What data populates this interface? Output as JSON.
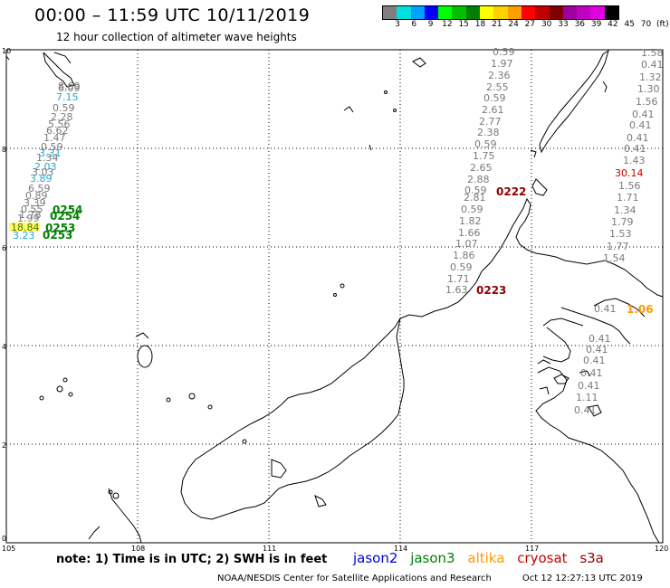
{
  "header": {
    "title": "00:00 – 11:59 UTC 10/11/2019",
    "subtitle": "12 hour collection of altimeter wave heights"
  },
  "colorbar": {
    "colors": [
      "#808080",
      "#00e0e0",
      "#00a0ff",
      "#0000ff",
      "#00ff00",
      "#00c000",
      "#008000",
      "#ffff00",
      "#ffd000",
      "#ffa000",
      "#ff0000",
      "#c00000",
      "#800000",
      "#a000a0",
      "#c000c0",
      "#e000e0",
      "#000000"
    ],
    "labels": [
      "3",
      "6",
      "9",
      "12",
      "15",
      "18",
      "21",
      "24",
      "27",
      "30",
      "33",
      "36",
      "39",
      "42",
      "45",
      "70",
      "(ft)"
    ]
  },
  "axes": {
    "y_labels": [
      "10",
      "8",
      "6",
      "4",
      "2",
      "0"
    ],
    "x_labels": [
      "105",
      "108",
      "111",
      "114",
      "117",
      "120"
    ]
  },
  "satellite_colors": {
    "jason2": "#0000dd",
    "jason3": "#008000",
    "altika": "#ff9900",
    "cryosat": "#cc0000",
    "s3a": "#990000",
    "gray": "#7a7a7a",
    "cyan": "#20a8d8",
    "darkred": "#8b0000"
  },
  "observations": {
    "right_column": [
      "1.58",
      "0.41",
      "1.32",
      "1.30",
      "1.56",
      "0.41",
      "0.41",
      "0.41",
      "0.41",
      "1.43",
      "30.14",
      "1.56",
      "1.71",
      "1.34",
      "1.79",
      "1.53",
      "1.77",
      "1.54"
    ],
    "middle_column": [
      "0.59",
      "1.97",
      "2.36",
      "2.55",
      "0.59",
      "2.61",
      "2.77",
      "2.38",
      "0.59",
      "1.75",
      "2.65",
      "2.88",
      "0.59",
      "2.81",
      "0.59",
      "1.82",
      "1.66",
      "1.07",
      "1.86",
      "0.59",
      "1.71",
      "1.63"
    ],
    "lower_right": [
      "0.41",
      "0.41",
      "0.41",
      "0.41",
      "0.41",
      "0.41",
      "1.11",
      "0.41"
    ],
    "left_track": [
      "8.69",
      "6.09",
      "7.15",
      "0.59",
      "2.28",
      "5.56",
      "6.62",
      "1.47",
      "0.59",
      "3.31",
      "1.34",
      "2.03",
      "3.03",
      "3.89",
      "6.59",
      "0.89",
      "3.39",
      "0.55",
      "1.78",
      "1.99",
      "18.84",
      "3.23"
    ],
    "pass_labels": {
      "left": [
        "0254",
        "0254",
        "0253",
        "0253"
      ],
      "cryosat_1": "0222",
      "cryosat_2": "0223",
      "altika_value": "1.06"
    }
  },
  "legend": {
    "note": "note: 1) Time is in UTC; 2) SWH is in feet",
    "jason2": "jason2",
    "jason3": "jason3",
    "altika": "altika",
    "cryosat": "cryosat",
    "s3a": "s3a"
  },
  "footer": {
    "credit": "NOAA/NESDIS Center for Satellite Applications and Research",
    "timestamp": "Oct 12 12:27:13 UTC 2019"
  }
}
